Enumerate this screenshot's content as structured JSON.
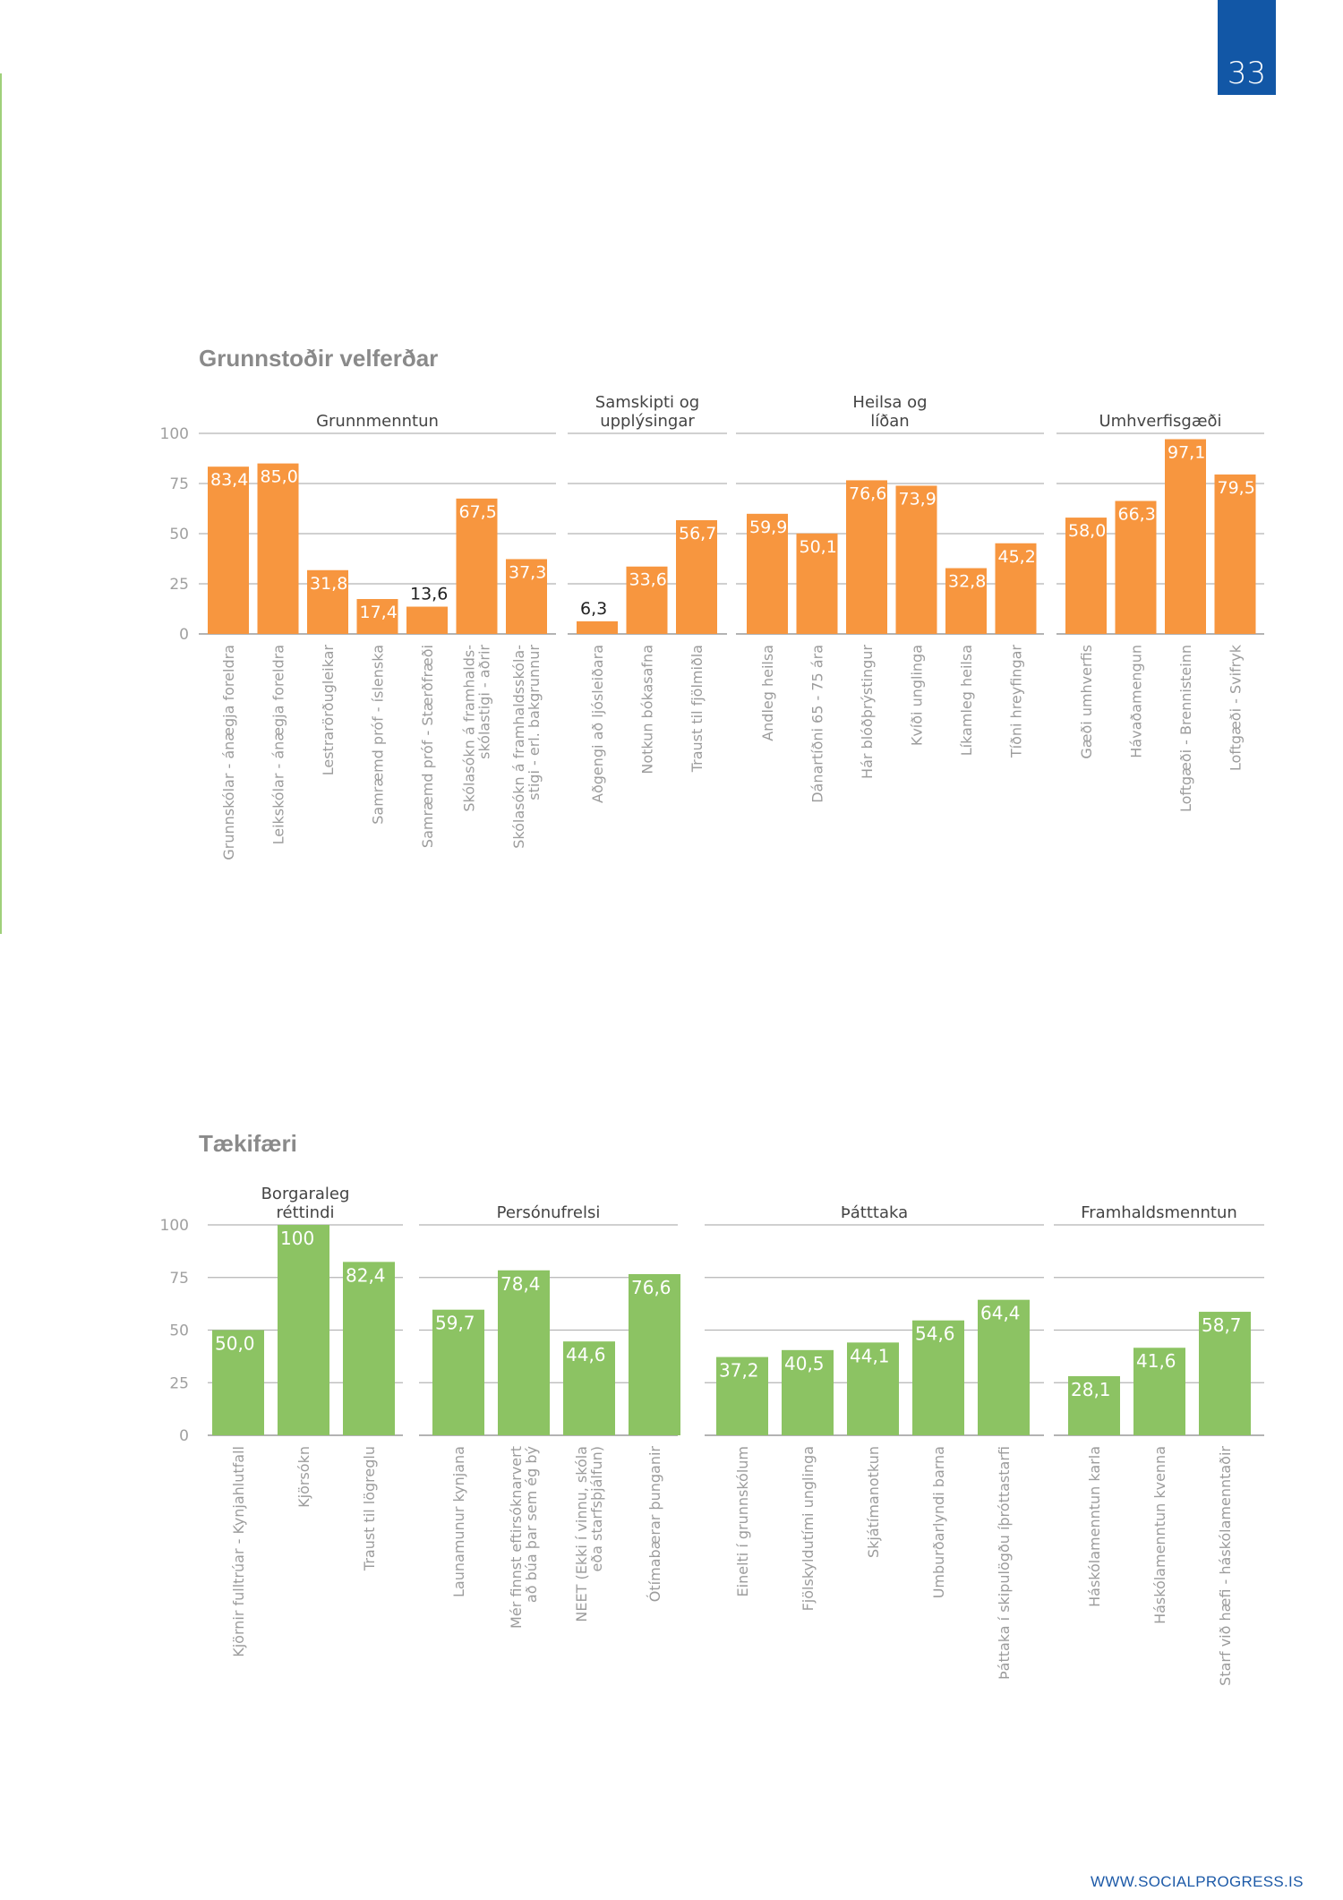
{
  "page_number": "33",
  "footer": "WWW.SOCIALPROGRESS.IS",
  "colors": {
    "chart1_bar": "#f7963f",
    "chart2_bar": "#8cc363",
    "accent_blue": "#1257a6"
  },
  "chart_data": [
    {
      "type": "bar",
      "title": "Grunnstoðir velferðar",
      "ylim": [
        0,
        100
      ],
      "yticks": [
        "0",
        "25",
        "50",
        "75",
        "100"
      ],
      "groups": [
        {
          "title": [
            "Grunnmenntun"
          ],
          "bars": [
            {
              "label": [
                "Grunnskólar - ánægja foreldra"
              ],
              "value": 83.4,
              "display": "83,4"
            },
            {
              "label": [
                "Leikskólar - ánægja foreldra"
              ],
              "value": 85.0,
              "display": "85,0"
            },
            {
              "label": [
                "Lestrarörðugleikar"
              ],
              "value": 31.8,
              "display": "31,8"
            },
            {
              "label": [
                "Samræmd próf - íslenska"
              ],
              "value": 17.4,
              "display": "17,4"
            },
            {
              "label": [
                "Samræmd próf - Stærðfræði"
              ],
              "value": 13.6,
              "display": "13,6"
            },
            {
              "label": [
                "Skólasókn á framhalds-",
                "skólastigi - aðrir"
              ],
              "value": 67.5,
              "display": "67,5"
            },
            {
              "label": [
                "Skólasókn á framhaldsskóla-",
                "stigi - erl. bakgrunnur"
              ],
              "value": 37.3,
              "display": "37,3"
            }
          ]
        },
        {
          "title": [
            "Samskipti  og",
            "upplýsingar"
          ],
          "bars": [
            {
              "label": [
                "Aðgengi að ljósleiðara"
              ],
              "value": 6.3,
              "display": "6,3"
            },
            {
              "label": [
                "Notkun bókasafna"
              ],
              "value": 33.6,
              "display": "33,6"
            },
            {
              "label": [
                "Traust til fjölmiðla"
              ],
              "value": 56.7,
              "display": "56,7"
            }
          ]
        },
        {
          "title": [
            "Heilsa  og",
            "líðan"
          ],
          "bars": [
            {
              "label": [
                "Andleg heilsa"
              ],
              "value": 59.9,
              "display": "59,9"
            },
            {
              "label": [
                "Dánartíðni 65 - 75 ára"
              ],
              "value": 50.1,
              "display": "50,1"
            },
            {
              "label": [
                "Hár blóðþrýstingur"
              ],
              "value": 76.6,
              "display": "76,6"
            },
            {
              "label": [
                "Kvíði unglinga"
              ],
              "value": 73.9,
              "display": "73,9"
            },
            {
              "label": [
                "Líkamleg heilsa"
              ],
              "value": 32.8,
              "display": "32,8"
            },
            {
              "label": [
                "Tíðni hreyfingar"
              ],
              "value": 45.2,
              "display": "45,2"
            }
          ]
        },
        {
          "title": [
            "Umhverfisgæði"
          ],
          "bars": [
            {
              "label": [
                "Gæði umhverfis"
              ],
              "value": 58.0,
              "display": "58,0"
            },
            {
              "label": [
                "Hávaðamengun"
              ],
              "value": 66.3,
              "display": "66,3"
            },
            {
              "label": [
                "Loftgæði - Brennisteinn"
              ],
              "value": 97.1,
              "display": "97,1"
            },
            {
              "label": [
                "Loftgæði - Svifryk"
              ],
              "value": 79.5,
              "display": "79,5"
            }
          ]
        }
      ]
    },
    {
      "type": "bar",
      "title": "Tækifæri",
      "ylim": [
        0,
        100
      ],
      "yticks": [
        "0",
        "25",
        "50",
        "75",
        "100"
      ],
      "groups": [
        {
          "title": [
            "Borgaraleg",
            "réttindi"
          ],
          "bars": [
            {
              "label": [
                "Kjörnir fulltrúar - Kynjahlutfall"
              ],
              "value": 50.0,
              "display": "50,0"
            },
            {
              "label": [
                "Kjörsókn"
              ],
              "value": 100,
              "display": "100"
            },
            {
              "label": [
                "Traust til lögreglu"
              ],
              "value": 82.4,
              "display": "82,4"
            }
          ]
        },
        {
          "title": [
            "Persónufrelsi"
          ],
          "bars": [
            {
              "label": [
                "Launamunur kynjana"
              ],
              "value": 59.7,
              "display": "59,7"
            },
            {
              "label": [
                "Mér finnst eftirsóknarvert",
                "að búa þar sem ég bý"
              ],
              "value": 78.4,
              "display": "78,4"
            },
            {
              "label": [
                "NEET (Ekki í vinnu, skóla",
                "eða starfsþjálfun)"
              ],
              "value": 44.6,
              "display": "44,6"
            },
            {
              "label": [
                "Ótímabærar þunganir"
              ],
              "value": 76.6,
              "display": "76,6"
            }
          ]
        },
        {
          "title": [
            "Þátttaka"
          ],
          "bars": [
            {
              "label": [
                "Einelti í grunnskólum"
              ],
              "value": 37.2,
              "display": "37,2"
            },
            {
              "label": [
                "Fjölskyldutími unglinga"
              ],
              "value": 40.5,
              "display": "40,5"
            },
            {
              "label": [
                "Skjátímanotkun"
              ],
              "value": 44.1,
              "display": "44,1"
            },
            {
              "label": [
                "Umburðarlyndi barna"
              ],
              "value": 54.6,
              "display": "54,6"
            },
            {
              "label": [
                "Þáttaka í skipulögðu íþróttastarfi"
              ],
              "value": 64.4,
              "display": "64,4"
            }
          ]
        },
        {
          "title": [
            "Framhaldsmenntun"
          ],
          "bars": [
            {
              "label": [
                "Háskólamenntun karla"
              ],
              "value": 28.1,
              "display": "28,1"
            },
            {
              "label": [
                "Háskólamenntun kvenna"
              ],
              "value": 41.6,
              "display": "41,6"
            },
            {
              "label": [
                "Starf við hæfi - háskólamenntaðir"
              ],
              "value": 58.7,
              "display": "58,7"
            }
          ]
        }
      ]
    }
  ]
}
